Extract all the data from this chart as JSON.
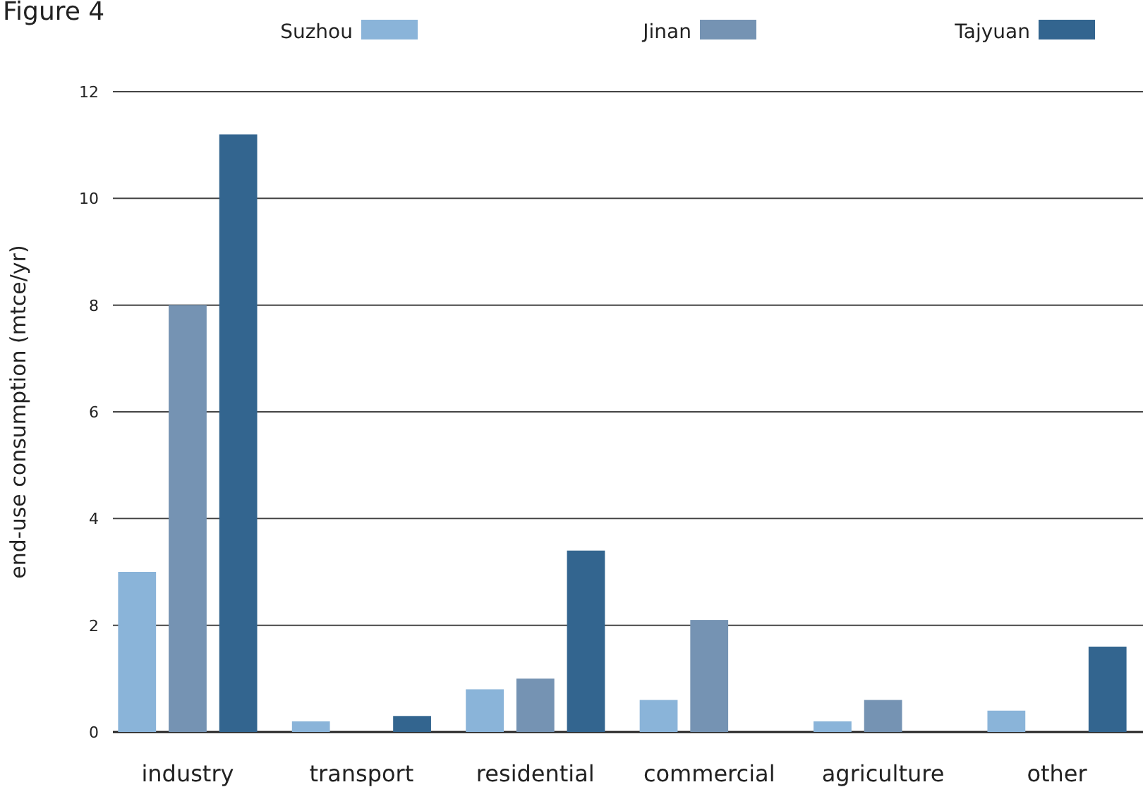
{
  "chart_data": {
    "type": "bar",
    "title": "Figure 4",
    "ylabel": "end-use consumption (mtce/yr)",
    "categories": [
      "industry",
      "transport",
      "residential",
      "commercial",
      "agriculture",
      "other"
    ],
    "series": [
      {
        "name": "Suzhou",
        "color": "#8ab4d9",
        "values": [
          3,
          0.2,
          0.8,
          0.6,
          0.2,
          0.4
        ]
      },
      {
        "name": "Jinan",
        "color": "#7593b3",
        "values": [
          8,
          null,
          1.0,
          2.1,
          0.6,
          null
        ]
      },
      {
        "name": "Tajyuan",
        "color": "#33658f",
        "values": [
          11.2,
          0.3,
          3.4,
          null,
          null,
          1.6
        ]
      }
    ],
    "ylim": [
      0,
      12
    ],
    "yticks": [
      0,
      2,
      4,
      6,
      8,
      10,
      12
    ],
    "grid": "y",
    "legend": "top"
  }
}
